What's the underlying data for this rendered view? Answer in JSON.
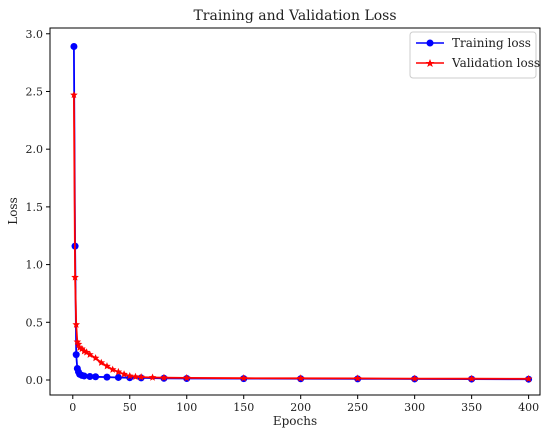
{
  "chart_data": {
    "type": "line",
    "title": "Training and Validation Loss",
    "xlabel": "Epochs",
    "ylabel": "Loss",
    "xlim": [
      -20,
      410
    ],
    "ylim": [
      -0.13,
      3.05
    ],
    "xticks": [
      0,
      50,
      100,
      150,
      200,
      250,
      300,
      350,
      400
    ],
    "yticks": [
      0.0,
      0.5,
      1.0,
      1.5,
      2.0,
      2.5,
      3.0
    ],
    "xtick_labels": [
      "0",
      "50",
      "100",
      "150",
      "200",
      "250",
      "300",
      "350",
      "400"
    ],
    "ytick_labels": [
      "0.0",
      "0.5",
      "1.0",
      "1.5",
      "2.0",
      "2.5",
      "3.0"
    ],
    "grid": false,
    "legend_position": "top-right",
    "series": [
      {
        "name": "Training loss",
        "color": "#0000ff",
        "marker": "circle",
        "x": [
          1,
          2,
          3,
          4,
          5,
          6,
          8,
          10,
          15,
          20,
          30,
          40,
          50,
          60,
          80,
          100,
          150,
          200,
          250,
          300,
          350,
          400
        ],
        "y": [
          2.89,
          1.16,
          0.22,
          0.1,
          0.07,
          0.05,
          0.04,
          0.035,
          0.03,
          0.028,
          0.025,
          0.022,
          0.02,
          0.018,
          0.015,
          0.013,
          0.012,
          0.011,
          0.01,
          0.009,
          0.008,
          0.007
        ]
      },
      {
        "name": "Validation loss",
        "color": "#ff0000",
        "marker": "star",
        "x": [
          1,
          2,
          3,
          4,
          5,
          6,
          8,
          10,
          12,
          15,
          20,
          25,
          30,
          35,
          40,
          45,
          50,
          55,
          60,
          70,
          80,
          100,
          150,
          200,
          250,
          300,
          350,
          400
        ],
        "y": [
          2.47,
          0.89,
          0.48,
          0.33,
          0.31,
          0.28,
          0.27,
          0.25,
          0.24,
          0.22,
          0.19,
          0.15,
          0.12,
          0.09,
          0.07,
          0.05,
          0.035,
          0.028,
          0.025,
          0.022,
          0.02,
          0.018,
          0.016,
          0.015,
          0.014,
          0.012,
          0.011,
          0.01
        ]
      }
    ]
  }
}
